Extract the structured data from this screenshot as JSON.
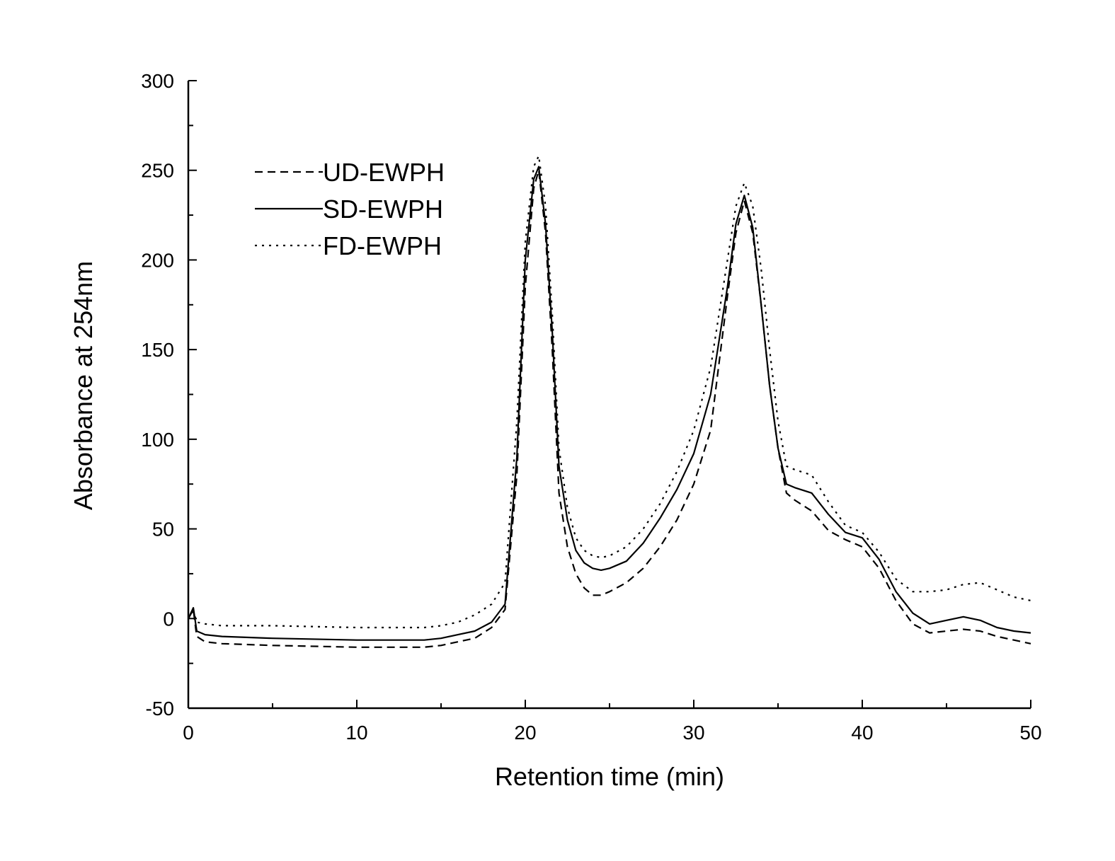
{
  "chart_data": {
    "type": "line",
    "xlabel": "Retention time (min)",
    "ylabel": "Absorbance at 254nm",
    "xlim": [
      0,
      50
    ],
    "ylim": [
      -50,
      300
    ],
    "xticks": [
      0,
      10,
      20,
      30,
      40,
      50
    ],
    "yticks": [
      -50,
      0,
      50,
      100,
      150,
      200,
      250,
      300
    ],
    "grid": false,
    "legend_position": "top-left",
    "series": [
      {
        "name": "UD-EWPH",
        "style": "dashed",
        "color": "#000000",
        "x": [
          0,
          0.3,
          0.5,
          1,
          2,
          5,
          10,
          14,
          15,
          16,
          17,
          18,
          18.8,
          19.5,
          20,
          20.5,
          20.8,
          21.2,
          21.6,
          22,
          22.5,
          23,
          23.5,
          24,
          24.5,
          25,
          26,
          27,
          28,
          29,
          30,
          31,
          32,
          32.5,
          33,
          33.5,
          34,
          34.5,
          35,
          35.5,
          36,
          37,
          38,
          39,
          40,
          41,
          42,
          43,
          44,
          45,
          46,
          47,
          48,
          49,
          50
        ],
        "y": [
          0,
          5,
          -10,
          -13,
          -14,
          -15,
          -16,
          -16,
          -15,
          -13,
          -11,
          -5,
          5,
          80,
          185,
          240,
          250,
          215,
          150,
          70,
          40,
          25,
          17,
          13,
          13,
          15,
          20,
          28,
          40,
          55,
          75,
          105,
          180,
          215,
          233,
          215,
          175,
          130,
          95,
          70,
          66,
          60,
          49,
          44,
          40,
          28,
          10,
          -3,
          -8,
          -7,
          -6,
          -7,
          -10,
          -12,
          -14
        ]
      },
      {
        "name": "SD-EWPH",
        "style": "solid",
        "color": "#000000",
        "x": [
          0,
          0.3,
          0.5,
          1,
          2,
          5,
          10,
          14,
          15,
          16,
          17,
          18,
          18.8,
          19.5,
          20,
          20.5,
          20.8,
          21.2,
          21.6,
          22,
          22.5,
          23,
          23.5,
          24,
          24.5,
          25,
          26,
          27,
          28,
          29,
          30,
          31,
          32,
          32.5,
          33,
          33.5,
          34,
          34.5,
          35,
          35.5,
          36,
          37,
          38,
          39,
          40,
          41,
          42,
          43,
          44,
          45,
          46,
          47,
          48,
          49,
          50
        ],
        "y": [
          0,
          6,
          -7,
          -9,
          -10,
          -11,
          -12,
          -12,
          -11,
          -9,
          -7,
          -2,
          8,
          90,
          200,
          245,
          252,
          220,
          160,
          85,
          55,
          38,
          31,
          28,
          27,
          28,
          32,
          42,
          56,
          72,
          92,
          125,
          185,
          220,
          236,
          218,
          175,
          130,
          95,
          75,
          73,
          70,
          58,
          48,
          45,
          33,
          15,
          3,
          -3,
          -1,
          1,
          -1,
          -5,
          -7,
          -8
        ]
      },
      {
        "name": "FD-EWPH",
        "style": "dotted",
        "color": "#000000",
        "x": [
          0,
          0.3,
          0.5,
          1,
          2,
          5,
          10,
          14,
          15,
          16,
          17,
          18,
          18.8,
          19.5,
          20,
          20.5,
          20.8,
          21.2,
          21.6,
          22,
          22.5,
          23,
          23.5,
          24,
          24.5,
          25,
          26,
          27,
          28,
          29,
          30,
          31,
          32,
          32.5,
          33,
          33.5,
          34,
          34.5,
          35,
          35.5,
          36,
          37,
          38,
          39,
          40,
          41,
          42,
          43,
          44,
          45,
          46,
          47,
          48,
          49,
          50
        ],
        "y": [
          0,
          4,
          -2,
          -3,
          -4,
          -4,
          -5,
          -5,
          -4,
          -2,
          2,
          8,
          20,
          110,
          210,
          252,
          258,
          230,
          170,
          95,
          62,
          45,
          38,
          35,
          34,
          35,
          40,
          50,
          64,
          82,
          105,
          140,
          200,
          230,
          243,
          230,
          195,
          150,
          110,
          85,
          83,
          80,
          65,
          52,
          48,
          37,
          22,
          15,
          15,
          16,
          19,
          20,
          16,
          12,
          10
        ]
      }
    ]
  }
}
